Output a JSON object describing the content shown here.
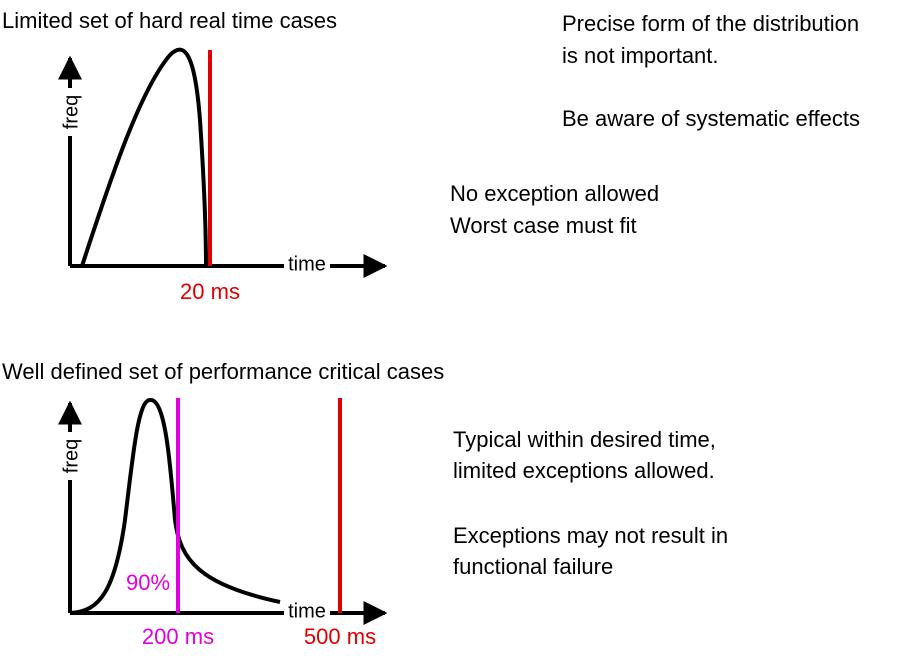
{
  "panels": [
    {
      "title": "Limited set of hard real time cases",
      "y_axis_label": "freq",
      "x_axis_label": "time",
      "markers": [
        "20 ms"
      ],
      "notes": [
        "Precise form of the distribution",
        "is not important.",
        "Be aware of systematic effects",
        "No exception allowed",
        "Worst case must fit"
      ]
    },
    {
      "title": "Well defined set of performance critical cases",
      "y_axis_label": "freq",
      "x_axis_label": "time",
      "percentile_label": "90%",
      "markers": [
        "200 ms",
        "500 ms"
      ],
      "notes": [
        "Typical within desired time,",
        "limited exceptions allowed.",
        "Exceptions may not result in",
        "functional failure"
      ]
    }
  ]
}
